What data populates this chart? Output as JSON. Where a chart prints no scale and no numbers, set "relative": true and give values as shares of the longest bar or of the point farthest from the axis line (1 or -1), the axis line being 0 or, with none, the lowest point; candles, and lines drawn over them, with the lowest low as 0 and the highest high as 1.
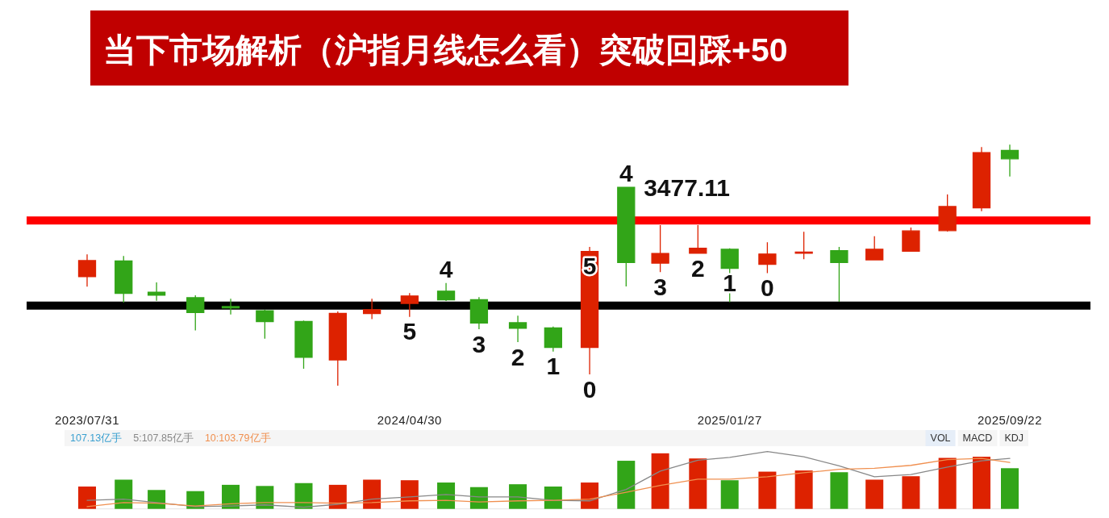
{
  "chart_data": [
    {
      "type": "candlestick",
      "title": "当下市场解析（沪指月线怎么看）突破回踩+50",
      "relative": true,
      "x": [
        "2023-07-31",
        "2023-08-31",
        "2023-09-28",
        "2023-10-31",
        "2023-11-30",
        "2023-12-29",
        "2024-01-31",
        "2024-02-29",
        "2024-03-29",
        "2024-04-30",
        "2024-05-31",
        "2024-06-28",
        "2024-07-31",
        "2024-08-30",
        "2024-09-30",
        "2024-10-31",
        "2024-11-29",
        "2024-12-31",
        "2025-01-27",
        "2025-02-28",
        "2025-03-31",
        "2025-04-30",
        "2025-05-30",
        "2025-06-30",
        "2025-07-31",
        "2025-08-29",
        "2025-09-22"
      ],
      "xlim": [
        "2023-07-31",
        "2025-09-22"
      ],
      "xticks": [
        {
          "value": "2023-07-31",
          "label": "2023/07/31"
        },
        {
          "value": "2024-04-30",
          "label": "2024/04/30"
        },
        {
          "value": "2025-01-27",
          "label": "2025/01/27"
        },
        {
          "value": "2025-09-22",
          "label": "2025/09/22"
        }
      ],
      "ohlc": [
        [
          0.452,
          0.545,
          0.411,
          0.519
        ],
        [
          0.517,
          0.538,
          0.345,
          0.383
        ],
        [
          0.388,
          0.428,
          0.352,
          0.375
        ],
        [
          0.365,
          0.375,
          0.229,
          0.303
        ],
        [
          0.328,
          0.361,
          0.295,
          0.323
        ],
        [
          0.311,
          0.315,
          0.195,
          0.266
        ],
        [
          0.266,
          0.27,
          0.07,
          0.118
        ],
        [
          0.107,
          0.308,
          0,
          0.3
        ],
        [
          0.299,
          0.361,
          0.276,
          0.315
        ],
        [
          0.341,
          0.384,
          0.285,
          0.372
        ],
        [
          0.392,
          0.426,
          0.351,
          0.356
        ],
        [
          0.357,
          0.367,
          0.234,
          0.26
        ],
        [
          0.261,
          0.29,
          0.181,
          0.238
        ],
        [
          0.24,
          0.245,
          0.141,
          0.159
        ],
        [
          0.159,
          0.576,
          0.047,
          0.557
        ],
        [
          0.823,
          0.823,
          0.412,
          0.511
        ],
        [
          0.508,
          0.666,
          0.471,
          0.548
        ],
        [
          0.549,
          0.666,
          0.549,
          0.57
        ],
        [
          0.566,
          0.57,
          0.346,
          0.487
        ],
        [
          0.503,
          0.595,
          0.467,
          0.546
        ],
        [
          0.549,
          0.638,
          0.525,
          0.554
        ],
        [
          0.56,
          0.576,
          0.348,
          0.511
        ],
        [
          0.522,
          0.62,
          0.52,
          0.566
        ],
        [
          0.558,
          0.656,
          0.558,
          0.642
        ],
        [
          0.643,
          0.793,
          0.639,
          0.743
        ],
        [
          0.738,
          0.99,
          0.724,
          0.967
        ],
        [
          0.976,
          1,
          0.868,
          0.941
        ]
      ],
      "colors": [
        "#dd2200",
        "#32a518",
        "#32a518",
        "#32a518",
        "#32a518",
        "#32a518",
        "#32a518",
        "#dd2200",
        "#dd2200",
        "#dd2200",
        "#32a518",
        "#32a518",
        "#32a518",
        "#32a518",
        "#dd2200",
        "#32a518",
        "#dd2200",
        "#dd2200",
        "#32a518",
        "#dd2200",
        "#dd2200",
        "#32a518",
        "#dd2200",
        "#dd2200",
        "#dd2200",
        "#dd2200",
        "#32a518"
      ],
      "ref_lines": [
        {
          "axis": "y",
          "value": 0.685,
          "color": "#ff0000"
        },
        {
          "axis": "y",
          "value": 0.332,
          "color": "#000000"
        }
      ],
      "annotations": [
        "3477.11",
        {
          "text": "5",
          "x": "2024-04-30",
          "y": 0.285
        },
        {
          "text": "4",
          "x": "2024-05-31",
          "y": 0.426
        },
        {
          "text": "3",
          "x": "2024-06-28",
          "y": 0.234
        },
        {
          "text": "2",
          "x": "2024-07-31",
          "y": 0.181
        },
        {
          "text": "1",
          "x": "2024-08-30",
          "y": 0.141
        },
        {
          "text": "0",
          "x": "2024-09-30",
          "y": 0.047
        },
        {
          "text": "5",
          "x": "2024-09-30",
          "y": 0.557
        },
        {
          "text": "4",
          "x": "2024-10-31",
          "y": 0.823
        },
        {
          "text": "3",
          "x": "2024-11-29",
          "y": 0.471
        },
        {
          "text": "2",
          "x": "2024-12-31",
          "y": 0.549
        },
        {
          "text": "1",
          "x": "2025-01-27",
          "y": 0.487
        },
        {
          "text": "0",
          "x": "2025-02-28",
          "y": 0.467
        }
      ]
    },
    {
      "type": "bar",
      "relative": true,
      "x": [
        "2023-07-31",
        "2023-08-31",
        "2023-09-28",
        "2023-10-31",
        "2023-11-30",
        "2023-12-29",
        "2024-01-31",
        "2024-02-29",
        "2024-03-29",
        "2024-04-30",
        "2024-05-31",
        "2024-06-28",
        "2024-07-31",
        "2024-08-30",
        "2024-09-30",
        "2024-10-31",
        "2024-11-29",
        "2024-12-31",
        "2025-01-27",
        "2025-02-28",
        "2025-03-31",
        "2025-04-30",
        "2025-05-30",
        "2025-06-30",
        "2025-07-31",
        "2025-08-29",
        "2025-09-22"
      ],
      "xlim": [
        "2023-07-31",
        "2025-09-22"
      ],
      "annotations": [
        "107.13亿手",
        "VOL",
        "MACD",
        "KDJ"
      ],
      "series": [
        {
          "type": "bar",
          "colors": [
            "#dd2200",
            "#32a518",
            "#32a518",
            "#32a518",
            "#32a518",
            "#32a518",
            "#32a518",
            "#dd2200",
            "#dd2200",
            "#dd2200",
            "#32a518",
            "#32a518",
            "#32a518",
            "#32a518",
            "#dd2200",
            "#32a518",
            "#dd2200",
            "#dd2200",
            "#32a518",
            "#dd2200",
            "#dd2200",
            "#32a518",
            "#dd2200",
            "#dd2200",
            "#dd2200",
            "#dd2200",
            "#32a518"
          ],
          "values": [
            0.39,
            0.51,
            0.33,
            0.31,
            0.42,
            0.4,
            0.45,
            0.42,
            0.51,
            0.5,
            0.46,
            0.38,
            0.43,
            0.39,
            0.46,
            0.84,
            0.97,
            0.88,
            0.5,
            0.65,
            0.67,
            0.64,
            0.51,
            0.57,
            0.89,
            0.91,
            0.71
          ]
        },
        {
          "type": "line",
          "name": "5:107.85亿手",
          "color": "#888888",
          "values": [
            0.15,
            0.17,
            0.11,
            0.04,
            0.05,
            0.07,
            0.03,
            0.08,
            0.17,
            0.21,
            0.25,
            0.21,
            0.21,
            0.15,
            0.14,
            0.34,
            0.66,
            0.85,
            0.9,
            1.0,
            0.91,
            0.75,
            0.56,
            0.6,
            0.73,
            0.84,
            0.88
          ]
        },
        {
          "type": "line",
          "name": "10:103.79亿手",
          "color": "#f09050",
          "values": [
            0.04,
            0.11,
            0.1,
            0.05,
            0.09,
            0.11,
            0.11,
            0.1,
            0.11,
            0.14,
            0.15,
            0.12,
            0.14,
            0.15,
            0.17,
            0.29,
            0.41,
            0.52,
            0.52,
            0.56,
            0.63,
            0.69,
            0.71,
            0.76,
            0.86,
            0.88,
            0.81
          ]
        }
      ]
    }
  ]
}
